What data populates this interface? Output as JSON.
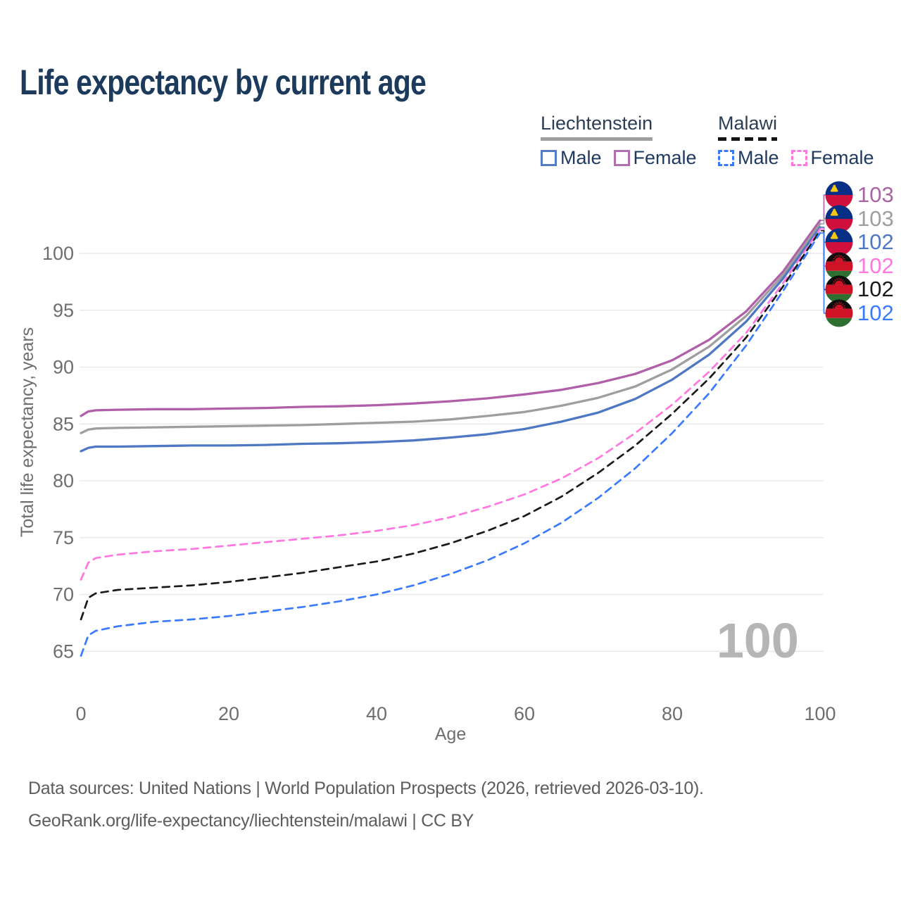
{
  "title": "Life expectancy by current age",
  "legend": {
    "groups": [
      {
        "name": "Liechtenstein",
        "line_style": "solid",
        "underline_color": "#9e9e9e",
        "items": [
          {
            "label": "Male",
            "color": "#557cc0",
            "dashed": false
          },
          {
            "label": "Female",
            "color": "#b06fae",
            "dashed": false
          }
        ]
      },
      {
        "name": "Malawi",
        "line_style": "dashed",
        "underline_color": "#141414",
        "items": [
          {
            "label": "Male",
            "color": "#3a7bfd",
            "dashed": true
          },
          {
            "label": "Female",
            "color": "#ff77df",
            "dashed": true
          }
        ]
      }
    ]
  },
  "chart_data": {
    "type": "line",
    "title": "Life expectancy by current age",
    "xlabel": "Age",
    "ylabel": "Total life expectancy, years",
    "xlim": [
      0,
      100
    ],
    "ylim": [
      63,
      104.5
    ],
    "xticks": [
      0,
      20,
      40,
      60,
      80,
      100
    ],
    "yticks": [
      65,
      70,
      75,
      80,
      85,
      90,
      95,
      100
    ],
    "grid": "horizontal-only",
    "legend_position": "top-right",
    "watermark": "100",
    "x": [
      0,
      1,
      2,
      5,
      10,
      15,
      20,
      25,
      30,
      35,
      40,
      45,
      50,
      55,
      60,
      65,
      70,
      75,
      80,
      85,
      90,
      95,
      100
    ],
    "series": [
      {
        "name": "Liechtenstein Female",
        "country": "Liechtenstein",
        "sex": "Female",
        "color": "#b05fa8",
        "dashed": false,
        "flag": "liechtenstein",
        "end_label": "103",
        "end_label_color": "#a964a3",
        "values": [
          85.7,
          86.1,
          86.2,
          86.25,
          86.3,
          86.3,
          86.35,
          86.4,
          86.5,
          86.55,
          86.65,
          86.8,
          87.0,
          87.25,
          87.6,
          88.0,
          88.6,
          89.4,
          90.6,
          92.4,
          94.9,
          98.4,
          102.9
        ]
      },
      {
        "name": "Liechtenstein Both sexes",
        "country": "Liechtenstein",
        "sex": "Both",
        "color": "#9e9e9e",
        "dashed": false,
        "flag": "liechtenstein",
        "end_label": "103",
        "end_label_color": "#9e9e9e",
        "values": [
          84.2,
          84.5,
          84.6,
          84.65,
          84.7,
          84.75,
          84.8,
          84.85,
          84.9,
          85.0,
          85.1,
          85.2,
          85.4,
          85.7,
          86.05,
          86.6,
          87.3,
          88.3,
          89.8,
          91.8,
          94.5,
          98.1,
          102.6
        ]
      },
      {
        "name": "Liechtenstein Male",
        "country": "Liechtenstein",
        "sex": "Male",
        "color": "#4e78c4",
        "dashed": false,
        "flag": "liechtenstein",
        "end_label": "102",
        "end_label_color": "#4e78c4",
        "values": [
          82.6,
          82.9,
          83.0,
          83.0,
          83.05,
          83.1,
          83.1,
          83.15,
          83.25,
          83.3,
          83.4,
          83.55,
          83.8,
          84.1,
          84.55,
          85.2,
          86.0,
          87.2,
          88.9,
          91.1,
          94.0,
          97.8,
          102.3
        ]
      },
      {
        "name": "Malawi Female",
        "country": "Malawi",
        "sex": "Female",
        "color": "#ff77df",
        "dashed": true,
        "flag": "malawi",
        "end_label": "102",
        "end_label_color": "#ff77df",
        "values": [
          71.3,
          72.8,
          73.2,
          73.5,
          73.8,
          74.0,
          74.3,
          74.6,
          74.9,
          75.2,
          75.6,
          76.1,
          76.8,
          77.7,
          78.8,
          80.2,
          82.0,
          84.2,
          86.7,
          89.6,
          93.0,
          97.4,
          102.15
        ]
      },
      {
        "name": "Malawi Both sexes",
        "country": "Malawi",
        "sex": "Both",
        "color": "#1a1a1a",
        "dashed": true,
        "flag": "malawi",
        "end_label": "102",
        "end_label_color": "#1a1a1a",
        "values": [
          67.8,
          69.7,
          70.1,
          70.4,
          70.6,
          70.8,
          71.1,
          71.5,
          71.9,
          72.4,
          72.9,
          73.6,
          74.5,
          75.6,
          76.9,
          78.6,
          80.7,
          83.1,
          85.9,
          89.0,
          92.6,
          97.1,
          102.0
        ]
      },
      {
        "name": "Malawi Male",
        "country": "Malawi",
        "sex": "Male",
        "color": "#3a7bfd",
        "dashed": true,
        "flag": "malawi",
        "end_label": "102",
        "end_label_color": "#3a7bfd",
        "values": [
          64.6,
          66.4,
          66.8,
          67.2,
          67.6,
          67.8,
          68.1,
          68.5,
          68.9,
          69.4,
          70.0,
          70.8,
          71.8,
          73.0,
          74.5,
          76.3,
          78.5,
          81.1,
          84.2,
          87.7,
          91.9,
          96.7,
          101.8
        ]
      }
    ]
  },
  "footer": {
    "line1": "Data sources: United Nations | World Population Prospects (2026, retrieved 2026-03-10).",
    "line2": "GeoRank.org/life-expectancy/liechtenstein/malawi | CC BY"
  }
}
